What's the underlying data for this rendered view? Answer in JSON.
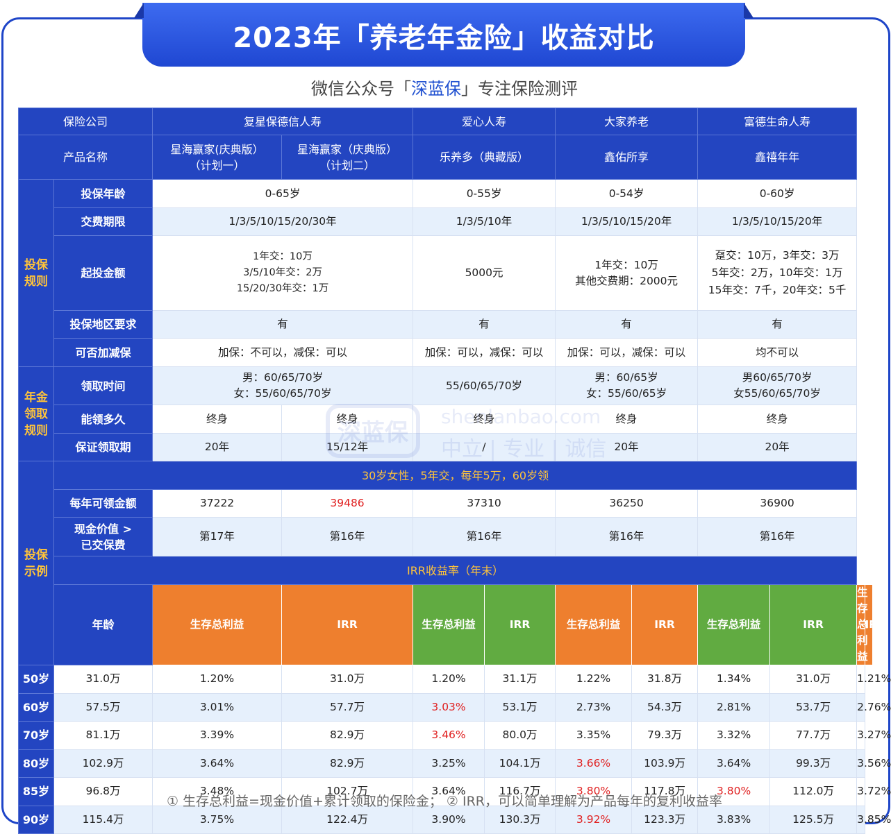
{
  "title": "2023年「养老年金险」收益对比",
  "subtitle": {
    "prefix": "微信公众号「",
    "brand": "深蓝保",
    "suffix": "」专注保险测评"
  },
  "watermark": {
    "logo_text": "深蓝保",
    "site": "shenlanbao.com",
    "slogan": "中立 | 专业 | 诚信"
  },
  "header": {
    "company_label": "保险公司",
    "companies": [
      "复星保德信人寿",
      "爱心人寿",
      "大家养老",
      "富德生命人寿"
    ],
    "product_label": "产品名称",
    "products": [
      "星海赢家(庆典版）\n（计划一）",
      "星海赢家（庆典版）\n（计划二）",
      "乐养多（典藏版）",
      "鑫佑所享",
      "鑫禧年年"
    ]
  },
  "rules": {
    "section": "投保\n规则",
    "rows": [
      {
        "label": "投保年龄",
        "values": [
          "0-65岁",
          "0-55岁",
          "0-54岁",
          "0-60岁"
        ]
      },
      {
        "label": "交费期限",
        "values": [
          "1/3/5/10/15/20/30年",
          "1/3/5/10年",
          "1/3/5/10/15/20年",
          "1/3/5/10/15/20年"
        ]
      },
      {
        "label": "起投金额",
        "values": [
          "1年交：10万\n3/5/10年交：2万\n15/20/30年交：1万",
          "5000元",
          "1年交：10万\n其他交费期：2000元",
          "趸交：10万，3年交：3万\n5年交：2万，10年交：1万\n15年交：7千，20年交：5千"
        ]
      },
      {
        "label": "投保地区要求",
        "values": [
          "有",
          "有",
          "有",
          "有"
        ]
      },
      {
        "label": "可否加减保",
        "values": [
          "加保：不可以，减保：可以",
          "加保：可以，减保：可以",
          "加保：可以，减保：可以",
          "均不可以"
        ]
      }
    ]
  },
  "annuity": {
    "section": "年金\n领取\n规则",
    "claim_time": {
      "label": "领取时间",
      "values": [
        "男：60/65/70岁\n女：55/60/65/70岁",
        "55/60/65/70岁",
        "男：60/65岁\n女：55/60/65岁",
        "男60/65/70岁\n女55/60/65/70岁"
      ]
    },
    "duration": {
      "label": "能领多久",
      "values": [
        "终身",
        "终身",
        "终身",
        "终身",
        "终身"
      ]
    },
    "guaranteed": {
      "label": "保证领取期",
      "values": [
        "20年",
        "15/12年",
        "/",
        "20年",
        "20年"
      ]
    }
  },
  "example": {
    "section": "投保\n示例",
    "scenario": "30岁女性，5年交，每年5万，60岁领",
    "annual": {
      "label": "每年可领金额",
      "values": [
        "37222",
        "39486",
        "37310",
        "36250",
        "36900"
      ]
    },
    "cash_value": {
      "label": "现金价值 >\n已交保费",
      "values": [
        "第17年",
        "第16年",
        "第16年",
        "第16年",
        "第16年"
      ]
    },
    "irr_title": "IRR收益率（年末）",
    "age_label": "年龄",
    "benefit_label": "生存总利益",
    "irr_label": "IRR",
    "rows": [
      {
        "age": "50岁",
        "values": [
          "31.0万",
          "1.20%",
          "31.0万",
          "1.20%",
          "31.1万",
          "1.22%",
          "31.8万",
          "1.34%",
          "31.0万",
          "1.21%"
        ]
      },
      {
        "age": "60岁",
        "values": [
          "57.5万",
          "3.01%",
          "57.7万",
          "3.03%",
          "53.1万",
          "2.73%",
          "54.3万",
          "2.81%",
          "53.7万",
          "2.76%"
        ]
      },
      {
        "age": "70岁",
        "values": [
          "81.1万",
          "3.39%",
          "82.9万",
          "3.46%",
          "80.0万",
          "3.35%",
          "79.3万",
          "3.32%",
          "77.7万",
          "3.27%"
        ]
      },
      {
        "age": "80岁",
        "values": [
          "102.9万",
          "3.64%",
          "82.9万",
          "3.25%",
          "104.1万",
          "3.66%",
          "103.9万",
          "3.64%",
          "99.3万",
          "3.56%"
        ]
      },
      {
        "age": "85岁",
        "values": [
          "96.8万",
          "3.48%",
          "102.7万",
          "3.64%",
          "116.7万",
          "3.80%",
          "117.8万",
          "3.80%",
          "112.0万",
          "3.72%"
        ]
      },
      {
        "age": "90岁",
        "values": [
          "115.4万",
          "3.75%",
          "122.4万",
          "3.90%",
          "130.3万",
          "3.92%",
          "123.3万",
          "3.83%",
          "125.5万",
          "3.85%"
        ]
      }
    ]
  },
  "footnote": "① 生存总利益=现金价值+累计领取的保险金；  ② IRR，可以简单理解为产品每年的复利收益率",
  "colors": {
    "primary": "#2345c1",
    "accent_yellow": "#ffc43a",
    "orange": "#ee7f2e",
    "green": "#61ab41",
    "highlight_red": "#e02020",
    "row_light": "#e6f0fc"
  }
}
